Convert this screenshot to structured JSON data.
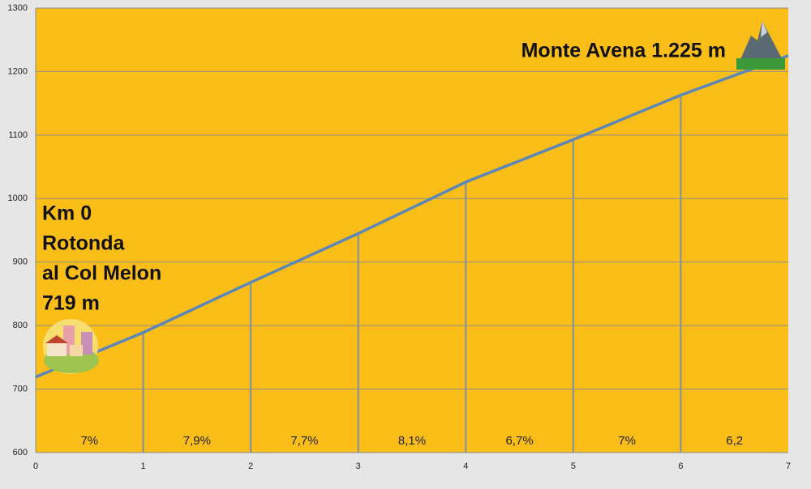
{
  "chart_data": {
    "type": "line",
    "x": [
      0,
      1,
      2,
      3,
      4,
      5,
      6,
      7
    ],
    "series": [
      {
        "color": "#5b86b8",
        "values": [
          719,
          789,
          868,
          945,
          1026,
          1093,
          1163,
          1225
        ]
      }
    ],
    "segment_labels": [
      "7%",
      "7,9%",
      "7,7%",
      "8,1%",
      "6,7%",
      "7%",
      "6,2"
    ],
    "start_annotation": [
      "Km 0",
      "Rotonda",
      "al Col Melon",
      "719 m"
    ],
    "end_annotation": "Monte Avena 1.225 m",
    "xlim": [
      0,
      7
    ],
    "xticks": [
      0,
      1,
      2,
      3,
      4,
      5,
      6,
      7
    ],
    "ylim": [
      600,
      1300
    ],
    "yticks": [
      600,
      700,
      800,
      900,
      1000,
      1100,
      1200,
      1300
    ],
    "grid": true,
    "background": "#fbbd17",
    "drop_lines": true
  }
}
